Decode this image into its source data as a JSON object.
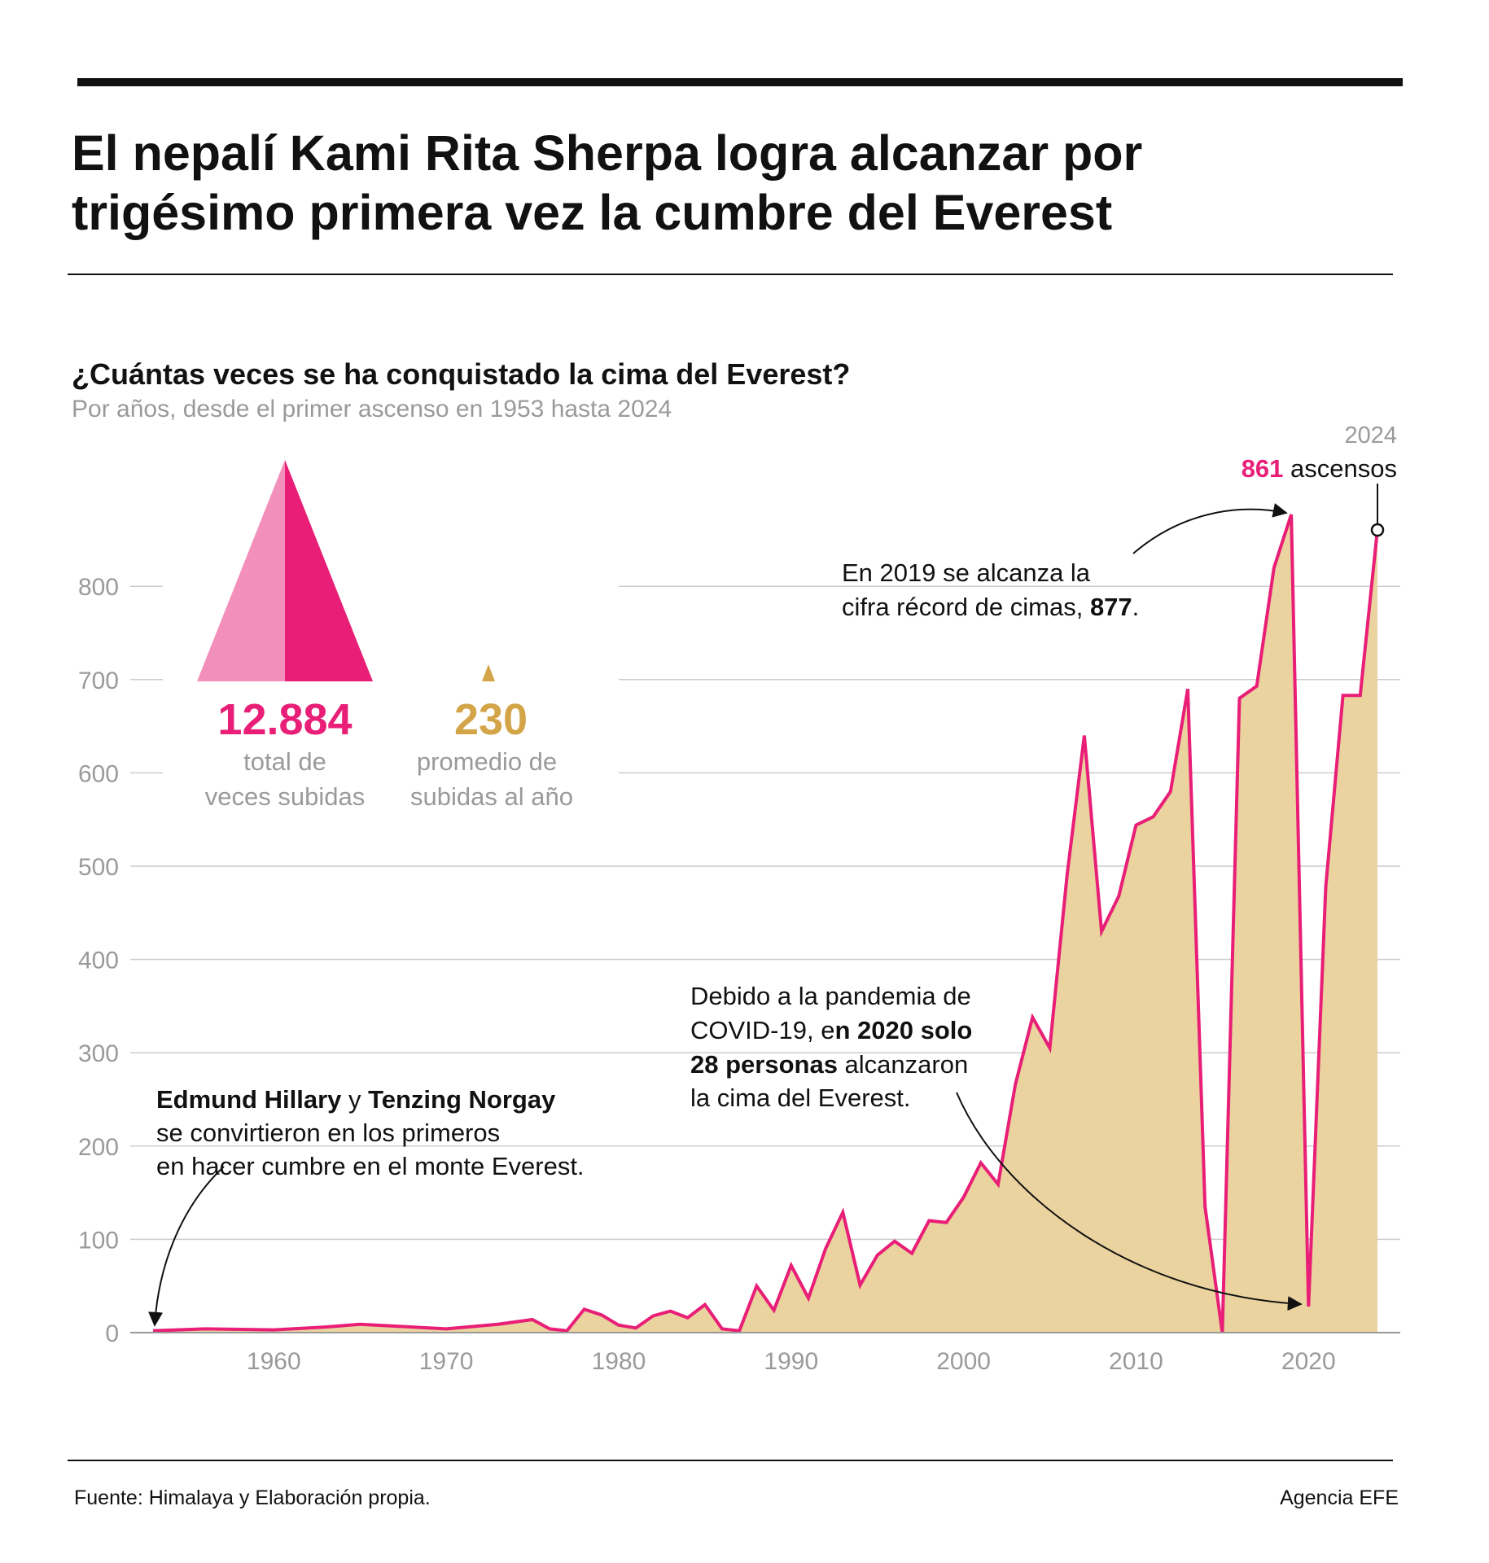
{
  "header": {
    "title_lines": [
      "El nepalí Kami Rita Sherpa logra alcanzar por",
      "trigésimo primera vez la cumbre del Everest"
    ]
  },
  "chart_title": "¿Cuántas veces se ha conquistado la cima del Everest?",
  "chart_subtitle": "Por años, desde el primer ascenso en 1953 hasta 2024",
  "stats": {
    "total_value": "12.884",
    "total_label_lines": [
      "total de",
      "veces subidas"
    ],
    "avg_value": "230",
    "avg_label_lines": [
      "promedio de",
      "subidas al año"
    ]
  },
  "annotations": {
    "peak_year": "2024",
    "peak_value": "861",
    "peak_suffix": " ascensos",
    "record_lines": [
      "En 2019 se alcanza la",
      "cifra récord de cimas, "
    ],
    "record_bold": "877",
    "record_end": ".",
    "covid_l1": "Debido a la pandemia de",
    "covid_l2_normal": "COVID-19, e",
    "covid_l2_bold": "n 2020 solo",
    "covid_l3_bold": "28 personas",
    "covid_l3_normal": " alcanzaron",
    "covid_l4": "la cima del Everest.",
    "hillary_bold1": "Edmund Hillary",
    "hillary_mid": " y ",
    "hillary_bold2": "Tenzing Norgay",
    "hillary_l2": " se convirtieron en los primeros",
    "hillary_l3": "en hacer cumbre en el monte Everest."
  },
  "footer": {
    "source": "Fuente: Himalaya y Elaboración propia.",
    "agency": "Agencia EFE"
  },
  "colors": {
    "line": "#e81e77",
    "fill": "#ead39f",
    "pink": "#e81e77",
    "pink_light": "#f28fba",
    "gold": "#d3a548",
    "gray_text": "#9a9a9a",
    "grid": "#cccccc"
  },
  "chart_data": {
    "type": "area",
    "xlim": [
      1953,
      2024
    ],
    "ylim": [
      0,
      900
    ],
    "y_ticks": [
      0,
      100,
      200,
      300,
      400,
      500,
      600,
      700,
      800
    ],
    "x_ticks": [
      1960,
      1970,
      1980,
      1990,
      2000,
      2010,
      2020
    ],
    "grid": true,
    "points": [
      [
        1953,
        2
      ],
      [
        1956,
        4
      ],
      [
        1960,
        3
      ],
      [
        1963,
        6
      ],
      [
        1965,
        9
      ],
      [
        1970,
        4
      ],
      [
        1973,
        9
      ],
      [
        1975,
        14
      ],
      [
        1976,
        4
      ],
      [
        1977,
        2
      ],
      [
        1978,
        25
      ],
      [
        1979,
        19
      ],
      [
        1980,
        8
      ],
      [
        1981,
        5
      ],
      [
        1982,
        18
      ],
      [
        1983,
        23
      ],
      [
        1984,
        16
      ],
      [
        1985,
        30
      ],
      [
        1986,
        4
      ],
      [
        1987,
        2
      ],
      [
        1988,
        50
      ],
      [
        1989,
        24
      ],
      [
        1990,
        72
      ],
      [
        1991,
        37
      ],
      [
        1992,
        90
      ],
      [
        1993,
        129
      ],
      [
        1994,
        51
      ],
      [
        1995,
        83
      ],
      [
        1996,
        98
      ],
      [
        1997,
        85
      ],
      [
        1998,
        120
      ],
      [
        1999,
        118
      ],
      [
        2000,
        145
      ],
      [
        2001,
        182
      ],
      [
        2002,
        159
      ],
      [
        2003,
        266
      ],
      [
        2004,
        338
      ],
      [
        2005,
        305
      ],
      [
        2006,
        490
      ],
      [
        2007,
        640
      ],
      [
        2008,
        430
      ],
      [
        2009,
        468
      ],
      [
        2010,
        544
      ],
      [
        2011,
        553
      ],
      [
        2012,
        580
      ],
      [
        2013,
        690
      ],
      [
        2014,
        135
      ],
      [
        2015,
        0
      ],
      [
        2016,
        680
      ],
      [
        2017,
        693
      ],
      [
        2018,
        820
      ],
      [
        2019,
        877
      ],
      [
        2020,
        28
      ],
      [
        2021,
        478
      ],
      [
        2022,
        683
      ],
      [
        2023,
        683
      ],
      [
        2024,
        861
      ]
    ]
  }
}
